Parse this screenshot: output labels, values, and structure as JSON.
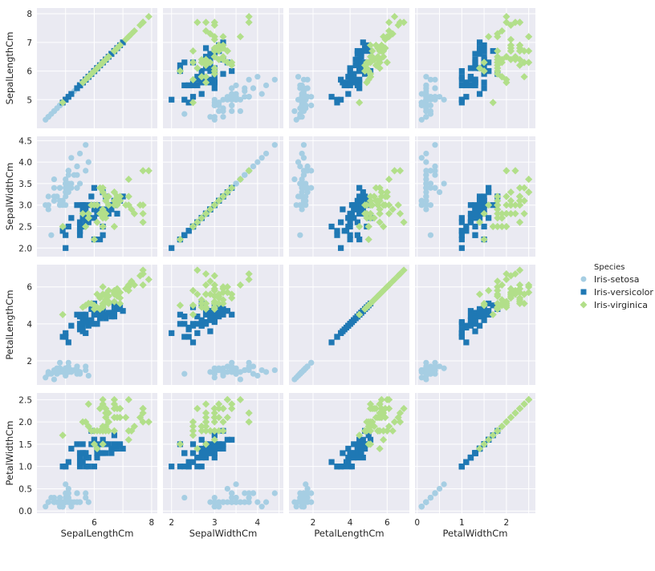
{
  "chart_data": {
    "type": "scatter",
    "grid": true,
    "legend_placement": "right",
    "variables": [
      "SepalLengthCm",
      "SepalWidthCm",
      "PetalLengthCm",
      "PetalWidthCm"
    ],
    "axis_ranges": {
      "SepalLengthCm": [
        4.0,
        8.2
      ],
      "SepalWidthCm": [
        1.8,
        4.6
      ],
      "PetalLengthCm": [
        0.7,
        7.2
      ],
      "PetalWidthCm": [
        -0.05,
        2.65
      ]
    },
    "ticks": {
      "SepalLengthCm": [
        5,
        6,
        7,
        8
      ],
      "SepalWidthCm": [
        2.0,
        2.5,
        3.0,
        3.5,
        4.0,
        4.5
      ],
      "PetalLengthCm": [
        2,
        4,
        6
      ],
      "PetalWidthCm": [
        0.0,
        0.5,
        1.0,
        1.5,
        2.0,
        2.5
      ]
    },
    "xticks": {
      "SepalLengthCm": [
        6,
        8
      ],
      "SepalWidthCm": [
        2,
        3,
        4
      ],
      "PetalLengthCm": [
        2,
        4,
        6
      ],
      "PetalWidthCm": [
        0,
        1,
        2
      ]
    },
    "legend_title": "Species",
    "series": [
      {
        "name": "Iris-setosa",
        "color": "#a6cee3",
        "marker": "circle",
        "points": [
          [
            5.1,
            3.5,
            1.4,
            0.2
          ],
          [
            4.9,
            3.0,
            1.4,
            0.2
          ],
          [
            4.7,
            3.2,
            1.3,
            0.2
          ],
          [
            4.6,
            3.1,
            1.5,
            0.2
          ],
          [
            5.0,
            3.6,
            1.4,
            0.2
          ],
          [
            5.4,
            3.9,
            1.7,
            0.4
          ],
          [
            4.6,
            3.4,
            1.4,
            0.3
          ],
          [
            5.0,
            3.4,
            1.5,
            0.2
          ],
          [
            4.4,
            2.9,
            1.4,
            0.2
          ],
          [
            4.9,
            3.1,
            1.5,
            0.1
          ],
          [
            5.4,
            3.7,
            1.5,
            0.2
          ],
          [
            4.8,
            3.4,
            1.6,
            0.2
          ],
          [
            4.8,
            3.0,
            1.4,
            0.1
          ],
          [
            4.3,
            3.0,
            1.1,
            0.1
          ],
          [
            5.8,
            4.0,
            1.2,
            0.2
          ],
          [
            5.7,
            4.4,
            1.5,
            0.4
          ],
          [
            5.4,
            3.9,
            1.3,
            0.4
          ],
          [
            5.1,
            3.5,
            1.4,
            0.3
          ],
          [
            5.7,
            3.8,
            1.7,
            0.3
          ],
          [
            5.1,
            3.8,
            1.5,
            0.3
          ],
          [
            5.4,
            3.4,
            1.7,
            0.2
          ],
          [
            5.1,
            3.7,
            1.5,
            0.4
          ],
          [
            4.6,
            3.6,
            1.0,
            0.2
          ],
          [
            5.1,
            3.3,
            1.7,
            0.5
          ],
          [
            4.8,
            3.4,
            1.9,
            0.2
          ],
          [
            5.0,
            3.0,
            1.6,
            0.2
          ],
          [
            5.0,
            3.4,
            1.6,
            0.4
          ],
          [
            5.2,
            3.5,
            1.5,
            0.2
          ],
          [
            5.2,
            3.4,
            1.4,
            0.2
          ],
          [
            4.7,
            3.2,
            1.6,
            0.2
          ],
          [
            4.8,
            3.1,
            1.6,
            0.2
          ],
          [
            5.4,
            3.4,
            1.5,
            0.4
          ],
          [
            5.2,
            4.1,
            1.5,
            0.1
          ],
          [
            5.5,
            4.2,
            1.4,
            0.2
          ],
          [
            4.9,
            3.1,
            1.5,
            0.1
          ],
          [
            5.0,
            3.2,
            1.2,
            0.2
          ],
          [
            5.5,
            3.5,
            1.3,
            0.2
          ],
          [
            4.9,
            3.1,
            1.5,
            0.1
          ],
          [
            4.4,
            3.0,
            1.3,
            0.2
          ],
          [
            5.1,
            3.4,
            1.5,
            0.2
          ],
          [
            5.0,
            3.5,
            1.3,
            0.3
          ],
          [
            4.5,
            2.3,
            1.3,
            0.3
          ],
          [
            4.4,
            3.2,
            1.3,
            0.2
          ],
          [
            5.0,
            3.5,
            1.6,
            0.6
          ],
          [
            5.1,
            3.8,
            1.9,
            0.4
          ],
          [
            4.8,
            3.0,
            1.4,
            0.3
          ],
          [
            5.1,
            3.8,
            1.6,
            0.2
          ],
          [
            4.6,
            3.2,
            1.4,
            0.2
          ],
          [
            5.3,
            3.7,
            1.5,
            0.2
          ],
          [
            5.0,
            3.3,
            1.4,
            0.2
          ]
        ]
      },
      {
        "name": "Iris-versicolor",
        "color": "#1f78b4",
        "marker": "square",
        "points": [
          [
            7.0,
            3.2,
            4.7,
            1.4
          ],
          [
            6.4,
            3.2,
            4.5,
            1.5
          ],
          [
            6.9,
            3.1,
            4.9,
            1.5
          ],
          [
            5.5,
            2.3,
            4.0,
            1.3
          ],
          [
            6.5,
            2.8,
            4.6,
            1.5
          ],
          [
            5.7,
            2.8,
            4.5,
            1.3
          ],
          [
            6.3,
            3.3,
            4.7,
            1.6
          ],
          [
            4.9,
            2.4,
            3.3,
            1.0
          ],
          [
            6.6,
            2.9,
            4.6,
            1.3
          ],
          [
            5.2,
            2.7,
            3.9,
            1.4
          ],
          [
            5.0,
            2.0,
            3.5,
            1.0
          ],
          [
            5.9,
            3.0,
            4.2,
            1.5
          ],
          [
            6.0,
            2.2,
            4.0,
            1.0
          ],
          [
            6.1,
            2.9,
            4.7,
            1.4
          ],
          [
            5.6,
            2.9,
            3.6,
            1.3
          ],
          [
            6.7,
            3.1,
            4.4,
            1.4
          ],
          [
            5.6,
            3.0,
            4.5,
            1.5
          ],
          [
            5.8,
            2.7,
            4.1,
            1.0
          ],
          [
            6.2,
            2.2,
            4.5,
            1.5
          ],
          [
            5.6,
            2.5,
            3.9,
            1.1
          ],
          [
            5.9,
            3.2,
            4.8,
            1.8
          ],
          [
            6.1,
            2.8,
            4.0,
            1.3
          ],
          [
            6.3,
            2.5,
            4.9,
            1.5
          ],
          [
            6.1,
            2.8,
            4.7,
            1.2
          ],
          [
            6.4,
            2.9,
            4.3,
            1.3
          ],
          [
            6.6,
            3.0,
            4.4,
            1.4
          ],
          [
            6.8,
            2.8,
            4.8,
            1.4
          ],
          [
            6.7,
            3.0,
            5.0,
            1.7
          ],
          [
            6.0,
            2.9,
            4.5,
            1.5
          ],
          [
            5.7,
            2.6,
            3.5,
            1.0
          ],
          [
            5.5,
            2.4,
            3.8,
            1.1
          ],
          [
            5.5,
            2.4,
            3.7,
            1.0
          ],
          [
            5.8,
            2.7,
            3.9,
            1.2
          ],
          [
            6.0,
            2.7,
            5.1,
            1.6
          ],
          [
            5.4,
            3.0,
            4.5,
            1.5
          ],
          [
            6.0,
            3.4,
            4.5,
            1.6
          ],
          [
            6.7,
            3.1,
            4.7,
            1.5
          ],
          [
            6.3,
            2.3,
            4.4,
            1.3
          ],
          [
            5.6,
            3.0,
            4.1,
            1.3
          ],
          [
            5.5,
            2.5,
            4.0,
            1.3
          ],
          [
            5.5,
            2.6,
            4.4,
            1.2
          ],
          [
            6.1,
            3.0,
            4.6,
            1.4
          ],
          [
            5.8,
            2.6,
            4.0,
            1.2
          ],
          [
            5.0,
            2.3,
            3.3,
            1.0
          ],
          [
            5.6,
            2.7,
            4.2,
            1.3
          ],
          [
            5.7,
            3.0,
            4.2,
            1.2
          ],
          [
            5.7,
            2.9,
            4.2,
            1.3
          ],
          [
            6.2,
            2.9,
            4.3,
            1.3
          ],
          [
            5.1,
            2.5,
            3.0,
            1.1
          ],
          [
            5.7,
            2.8,
            4.1,
            1.3
          ]
        ]
      },
      {
        "name": "Iris-virginica",
        "color": "#b2df8a",
        "marker": "diamond",
        "points": [
          [
            6.3,
            3.3,
            6.0,
            2.5
          ],
          [
            5.8,
            2.7,
            5.1,
            1.9
          ],
          [
            7.1,
            3.0,
            5.9,
            2.1
          ],
          [
            6.3,
            2.9,
            5.6,
            1.8
          ],
          [
            6.5,
            3.0,
            5.8,
            2.2
          ],
          [
            7.6,
            3.0,
            6.6,
            2.1
          ],
          [
            4.9,
            2.5,
            4.5,
            1.7
          ],
          [
            7.3,
            2.9,
            6.3,
            1.8
          ],
          [
            6.7,
            2.5,
            5.8,
            1.8
          ],
          [
            7.2,
            3.6,
            6.1,
            2.5
          ],
          [
            6.5,
            3.2,
            5.1,
            2.0
          ],
          [
            6.4,
            2.7,
            5.3,
            1.9
          ],
          [
            6.8,
            3.0,
            5.5,
            2.1
          ],
          [
            5.7,
            2.5,
            5.0,
            2.0
          ],
          [
            5.8,
            2.8,
            5.1,
            2.4
          ],
          [
            6.4,
            3.2,
            5.3,
            2.3
          ],
          [
            6.5,
            3.0,
            5.5,
            1.8
          ],
          [
            7.7,
            3.8,
            6.7,
            2.2
          ],
          [
            7.7,
            2.6,
            6.9,
            2.3
          ],
          [
            6.0,
            2.2,
            5.0,
            1.5
          ],
          [
            6.9,
            3.2,
            5.7,
            2.3
          ],
          [
            5.6,
            2.8,
            4.9,
            2.0
          ],
          [
            7.7,
            2.8,
            6.7,
            2.0
          ],
          [
            6.3,
            2.7,
            4.9,
            1.8
          ],
          [
            6.7,
            3.3,
            5.7,
            2.1
          ],
          [
            7.2,
            3.2,
            6.0,
            1.8
          ],
          [
            6.2,
            2.8,
            4.8,
            1.8
          ],
          [
            6.1,
            3.0,
            4.9,
            1.8
          ],
          [
            6.4,
            2.8,
            5.6,
            2.1
          ],
          [
            7.2,
            3.0,
            5.8,
            1.6
          ],
          [
            7.4,
            2.8,
            6.1,
            1.9
          ],
          [
            7.9,
            3.8,
            6.4,
            2.0
          ],
          [
            6.4,
            2.8,
            5.6,
            2.2
          ],
          [
            6.3,
            2.8,
            5.1,
            1.5
          ],
          [
            6.1,
            2.6,
            5.6,
            1.4
          ],
          [
            7.7,
            3.0,
            6.1,
            2.3
          ],
          [
            6.3,
            3.4,
            5.6,
            2.4
          ],
          [
            6.4,
            3.1,
            5.5,
            1.8
          ],
          [
            6.0,
            3.0,
            4.8,
            1.8
          ],
          [
            6.9,
            3.1,
            5.4,
            2.1
          ],
          [
            6.7,
            3.1,
            5.6,
            2.4
          ],
          [
            6.9,
            3.1,
            5.1,
            2.3
          ],
          [
            5.8,
            2.7,
            5.1,
            1.9
          ],
          [
            6.8,
            3.2,
            5.9,
            2.3
          ],
          [
            6.7,
            3.3,
            5.7,
            2.5
          ],
          [
            6.7,
            3.0,
            5.2,
            2.3
          ],
          [
            6.3,
            2.5,
            5.0,
            1.9
          ],
          [
            6.5,
            3.0,
            5.2,
            2.0
          ],
          [
            6.2,
            3.4,
            5.4,
            2.3
          ],
          [
            5.9,
            3.0,
            5.1,
            1.8
          ]
        ]
      }
    ]
  }
}
